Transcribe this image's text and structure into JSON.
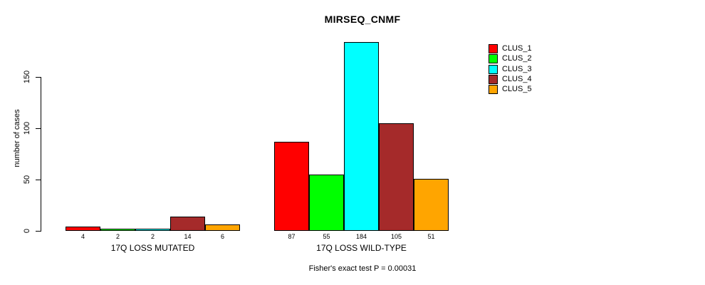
{
  "chart_data": {
    "type": "bar",
    "title": "MIRSEQ_CNMF",
    "ylabel": "number of cases",
    "xlabel": "",
    "caption": "Fisher's exact test P = 0.00031",
    "categories": [
      "17Q LOSS MUTATED",
      "17Q LOSS WILD-TYPE"
    ],
    "series": [
      {
        "name": "CLUS_1",
        "color": "#FF0000",
        "values": [
          4,
          87
        ]
      },
      {
        "name": "CLUS_2",
        "color": "#00FF00",
        "values": [
          2,
          55
        ]
      },
      {
        "name": "CLUS_3",
        "color": "#00FFFF",
        "values": [
          2,
          184
        ]
      },
      {
        "name": "CLUS_4",
        "color": "#A52A2A",
        "values": [
          14,
          105
        ]
      },
      {
        "name": "CLUS_5",
        "color": "#FFA500",
        "values": [
          6,
          51
        ]
      }
    ],
    "y_axis": {
      "label": "number of cases",
      "ticks": [
        0,
        50,
        100,
        150
      ],
      "range": [
        0,
        184
      ]
    },
    "legend": {
      "position": "right",
      "entries": [
        "CLUS_1",
        "CLUS_2",
        "CLUS_3",
        "CLUS_4",
        "CLUS_5"
      ]
    },
    "bar_value_labels_shown": true,
    "grid": false,
    "background_color": "#ffffff",
    "axis_color": "#000000"
  }
}
